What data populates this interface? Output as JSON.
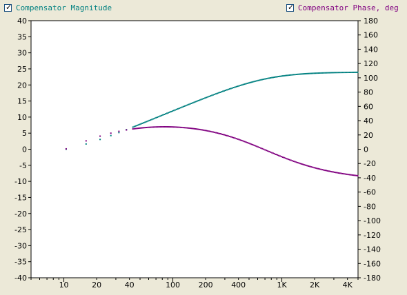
{
  "legend": {
    "left": {
      "label": "Compensator Magnitude",
      "checked": true,
      "color": "#008080"
    },
    "right": {
      "label": "Compensator Phase, deg",
      "checked": true,
      "color": "#800080"
    }
  },
  "chart_data": {
    "type": "scatter",
    "x_scale": "log",
    "xlim": [
      5,
      5000
    ],
    "x_ticks": [
      {
        "value": 10,
        "label": "10"
      },
      {
        "value": 20,
        "label": "20"
      },
      {
        "value": 40,
        "label": "40"
      },
      {
        "value": 100,
        "label": "100"
      },
      {
        "value": 200,
        "label": "200"
      },
      {
        "value": 400,
        "label": "400"
      },
      {
        "value": 1000,
        "label": "1K"
      },
      {
        "value": 2000,
        "label": "2K"
      },
      {
        "value": 4000,
        "label": "4K"
      }
    ],
    "ylim_left": [
      -40,
      40
    ],
    "y_ticks_left": [
      40,
      35,
      30,
      25,
      20,
      15,
      10,
      5,
      0,
      -5,
      -10,
      -15,
      -20,
      -25,
      -30,
      -35,
      -40
    ],
    "ylim_right": [
      -180,
      180
    ],
    "y_ticks_right": [
      180,
      160,
      140,
      120,
      100,
      80,
      60,
      40,
      20,
      0,
      -20,
      -40,
      -60,
      -80,
      -100,
      -120,
      -140,
      -160,
      -180
    ],
    "grid": false,
    "series": [
      {
        "name": "Compensator Magnitude",
        "axis": "left",
        "color": "#008080",
        "zero": 10.0,
        "pole": 700.0,
        "gain_db": 24.0
      },
      {
        "name": "Compensator Phase, deg",
        "axis": "right",
        "color": "#800080",
        "zero": 10.0,
        "pole": 700.0
      }
    ],
    "x_samples": {
      "first": [
        10.5,
        16,
        21.5,
        27,
        32,
        37.5
      ],
      "dense_from": 43,
      "to": 5000
    }
  }
}
